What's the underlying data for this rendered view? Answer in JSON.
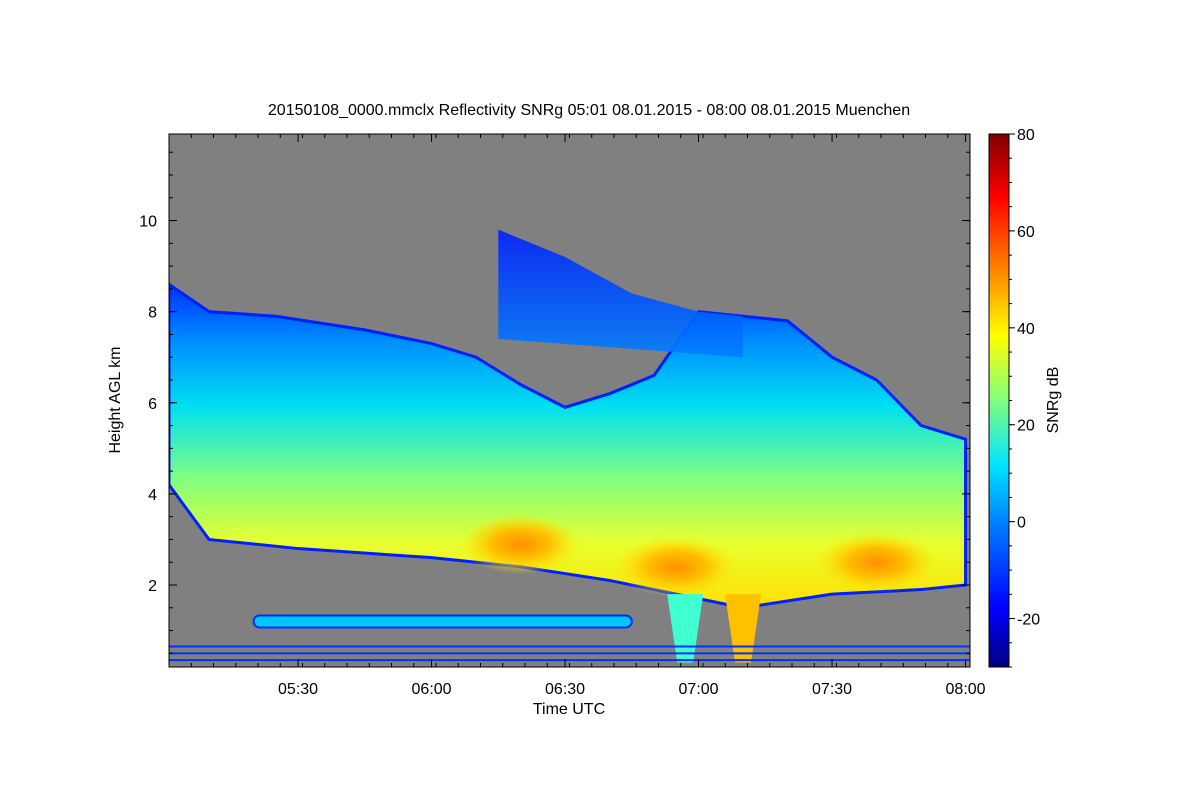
{
  "chart_data": {
    "type": "heatmap",
    "title": "20150108_0000.mmclx Reflectivity SNRg   05:01 08.01.2015 - 08:00 08.01.2015 Muenchen",
    "xlabel": "Time UTC",
    "ylabel": "Height AGL km",
    "colorbar_label": "SNRg dB",
    "x_ticks": [
      "05:30",
      "06:00",
      "06:30",
      "07:00",
      "07:30",
      "08:00"
    ],
    "y_ticks": [
      "2",
      "4",
      "6",
      "8",
      "10"
    ],
    "colorbar_ticks": [
      "-20",
      "0",
      "20",
      "40",
      "60",
      "80"
    ],
    "xlim": [
      "05:01",
      "08:01"
    ],
    "ylim": [
      0.2,
      11.9
    ],
    "colorbar_range": [
      -30,
      80
    ],
    "background_color": "#808080",
    "echo_layers": {
      "cloud_top_km": [
        {
          "t": "05:01",
          "h": 8.6
        },
        {
          "t": "05:10",
          "h": 8.0
        },
        {
          "t": "05:25",
          "h": 7.9
        },
        {
          "t": "05:45",
          "h": 7.6
        },
        {
          "t": "06:00",
          "h": 7.3
        },
        {
          "t": "06:10",
          "h": 7.0
        },
        {
          "t": "06:20",
          "h": 6.4
        },
        {
          "t": "06:30",
          "h": 5.9
        },
        {
          "t": "06:40",
          "h": 6.2
        },
        {
          "t": "06:50",
          "h": 6.6
        },
        {
          "t": "07:00",
          "h": 8.0
        },
        {
          "t": "07:10",
          "h": 7.9
        },
        {
          "t": "07:20",
          "h": 7.8
        },
        {
          "t": "07:30",
          "h": 7.0
        },
        {
          "t": "07:40",
          "h": 6.5
        },
        {
          "t": "07:50",
          "h": 5.5
        },
        {
          "t": "08:00",
          "h": 5.2
        }
      ],
      "cloud_base_km": [
        {
          "t": "05:01",
          "h": 4.2
        },
        {
          "t": "05:10",
          "h": 3.0
        },
        {
          "t": "05:30",
          "h": 2.8
        },
        {
          "t": "06:00",
          "h": 2.6
        },
        {
          "t": "06:20",
          "h": 2.4
        },
        {
          "t": "06:40",
          "h": 2.1
        },
        {
          "t": "06:55",
          "h": 1.8
        },
        {
          "t": "07:10",
          "h": 1.5
        },
        {
          "t": "07:30",
          "h": 1.8
        },
        {
          "t": "07:50",
          "h": 1.9
        },
        {
          "t": "08:00",
          "h": 2.0
        }
      ],
      "upper_cloud_top_km": [
        {
          "t": "06:15",
          "h": 9.8
        },
        {
          "t": "06:30",
          "h": 9.2
        },
        {
          "t": "06:45",
          "h": 8.4
        },
        {
          "t": "07:00",
          "h": 8.0
        },
        {
          "t": "07:10",
          "h": 7.9
        }
      ],
      "max_snr_regions": [
        {
          "t": "06:20",
          "h": 2.9,
          "snr_db": 45
        },
        {
          "t": "06:55",
          "h": 2.4,
          "snr_db": 48
        },
        {
          "t": "07:40",
          "h": 2.5,
          "snr_db": 40
        }
      ],
      "low_layer_km": [
        {
          "t_start": "05:20",
          "t_end": "06:45",
          "h": 1.2,
          "snr_db": 5
        }
      ],
      "precip_shafts": [
        {
          "t": "06:57",
          "h_top": 1.8,
          "h_bottom": 0.3,
          "snr_db": 25
        },
        {
          "t": "07:10",
          "h_top": 1.8,
          "h_bottom": 0.3,
          "snr_db": 50
        }
      ]
    }
  }
}
